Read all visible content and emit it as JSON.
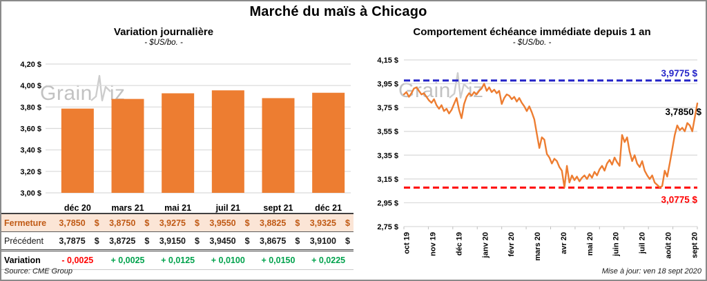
{
  "frame": {
    "title": "Marché du maïs à Chicago",
    "watermark_pre": "Grain",
    "watermark_post": "iz"
  },
  "left": {
    "title": "Variation journalière",
    "subtitle": "- $US/bo. -"
  },
  "right": {
    "title": "Comportement échéance immédiate depuis 1 an",
    "subtitle": "- $US/bo. -",
    "updated": "Mise à jour: ven 18 sept 2020"
  },
  "table": {
    "header": [
      "déc 20",
      "mars 21",
      "mai 21",
      "juil 21",
      "sept 21",
      "déc 21"
    ],
    "rows": [
      {
        "label": "Fermeture",
        "style": "close",
        "unit": "$",
        "values": [
          "3,7850",
          "3,8750",
          "3,9275",
          "3,9550",
          "3,8825",
          "3,9325"
        ]
      },
      {
        "label": "Précédent",
        "style": "prev",
        "unit": "$",
        "values": [
          "3,7875",
          "3,8725",
          "3,9150",
          "3,9450",
          "3,8675",
          "3,9100"
        ]
      },
      {
        "label": "Variation",
        "style": "var",
        "unit": "",
        "values": [
          "- 0,0025",
          "+ 0,0025",
          "+ 0,0125",
          "+ 0,0100",
          "+ 0,0150",
          "+ 0,0225"
        ],
        "signs": [
          "neg",
          "pos",
          "pos",
          "pos",
          "pos",
          "pos"
        ]
      }
    ],
    "source": "Source: CME Group"
  },
  "colors": {
    "orange": "#ED7D31",
    "grid": "#D9D9D9",
    "blue": "#2323C8",
    "red": "#FF0000",
    "green": "#00A24C",
    "close_bg": "#FBE5D6",
    "close_text": "#C05A15"
  },
  "chart_data": [
    {
      "type": "bar",
      "title": "Variation journalière",
      "subtitle": "- $US/bo. -",
      "categories": [
        "déc 20",
        "mars 21",
        "mai 21",
        "juil 21",
        "sept 21",
        "déc 21"
      ],
      "values": [
        3.785,
        3.875,
        3.9275,
        3.955,
        3.8825,
        3.9325
      ],
      "ylim": [
        3.0,
        4.2
      ],
      "ytick_step": 0.2,
      "ytick_labels": [
        "4,20 $",
        "4,00 $",
        "3,80 $",
        "3,60 $",
        "3,40 $",
        "3,20 $",
        "3,00 $"
      ],
      "bar_color": "#ED7D31",
      "grid": true
    },
    {
      "type": "line",
      "title": "Comportement échéance immédiate depuis 1 an",
      "subtitle": "- $US/bo. -",
      "x_labels": [
        "oct 19",
        "nov 19",
        "déc 19",
        "janv 20",
        "févr 20",
        "mars 20",
        "avr 20",
        "mai 20",
        "juin 20",
        "juil 20",
        "août 20",
        "sept 20"
      ],
      "ylim": [
        2.75,
        4.15
      ],
      "ytick_labels": [
        "4,15 $",
        "3,95 $",
        "3,75 $",
        "3,55 $",
        "3,35 $",
        "3,15 $",
        "2,95 $",
        "2,75 $"
      ],
      "line_color": "#ED7D31",
      "high": {
        "value": 3.9775,
        "label": "3,9775 $",
        "color": "#2323C8"
      },
      "low": {
        "value": 3.0775,
        "label": "3,0775 $",
        "color": "#FF0000"
      },
      "last": {
        "value": 3.785,
        "label": "3,7850 $",
        "color": "#000000"
      },
      "values": [
        3.86,
        3.88,
        3.84,
        3.87,
        3.91,
        3.92,
        3.89,
        3.86,
        3.87,
        3.84,
        3.81,
        3.79,
        3.82,
        3.77,
        3.74,
        3.77,
        3.72,
        3.74,
        3.7,
        3.73,
        3.78,
        3.83,
        3.73,
        3.66,
        3.78,
        3.84,
        3.87,
        3.85,
        3.88,
        3.86,
        3.89,
        3.91,
        3.95,
        3.89,
        3.92,
        3.88,
        3.9,
        3.87,
        3.89,
        3.78,
        3.83,
        3.86,
        3.85,
        3.82,
        3.84,
        3.8,
        3.83,
        3.79,
        3.76,
        3.72,
        3.76,
        3.71,
        3.65,
        3.53,
        3.41,
        3.5,
        3.48,
        3.36,
        3.33,
        3.28,
        3.32,
        3.3,
        3.25,
        3.22,
        3.08,
        3.26,
        3.12,
        3.18,
        3.14,
        3.17,
        3.13,
        3.16,
        3.18,
        3.15,
        3.19,
        3.16,
        3.21,
        3.18,
        3.23,
        3.26,
        3.22,
        3.28,
        3.31,
        3.27,
        3.33,
        3.29,
        3.26,
        3.52,
        3.46,
        3.5,
        3.38,
        3.3,
        3.35,
        3.28,
        3.25,
        3.3,
        3.22,
        3.18,
        3.15,
        3.18,
        3.12,
        3.1,
        3.08,
        3.09,
        3.22,
        3.17,
        3.28,
        3.4,
        3.52,
        3.6,
        3.56,
        3.58,
        3.55,
        3.62,
        3.6,
        3.55,
        3.67,
        3.785
      ]
    }
  ]
}
